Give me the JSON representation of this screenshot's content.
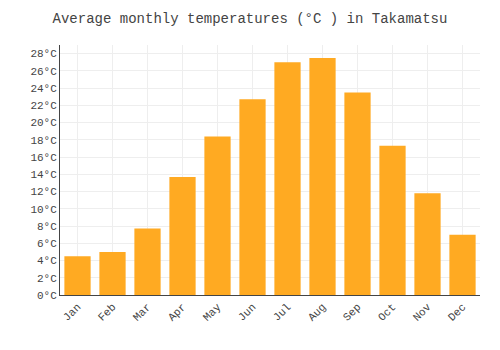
{
  "chart_data": {
    "type": "bar",
    "title": "Average monthly temperatures (°C ) in Takamatsu",
    "categories": [
      "Jan",
      "Feb",
      "Mar",
      "Apr",
      "May",
      "Jun",
      "Jul",
      "Aug",
      "Sep",
      "Oct",
      "Nov",
      "Dec"
    ],
    "values": [
      4.5,
      5.0,
      7.7,
      13.7,
      18.4,
      22.7,
      27.0,
      27.5,
      23.5,
      17.3,
      11.8,
      7.0
    ],
    "color": "#FFAA22",
    "ylim": [
      0,
      29
    ],
    "yticks": [
      {
        "value": 0,
        "label": "0°C"
      },
      {
        "value": 2,
        "label": "2°C"
      },
      {
        "value": 4,
        "label": "4°C"
      },
      {
        "value": 6,
        "label": "6°C"
      },
      {
        "value": 8,
        "label": "8°C"
      },
      {
        "value": 10,
        "label": "10°C"
      },
      {
        "value": 12,
        "label": "12°C"
      },
      {
        "value": 14,
        "label": "14°C"
      },
      {
        "value": 16,
        "label": "16°C"
      },
      {
        "value": 18,
        "label": "18°C"
      },
      {
        "value": 20,
        "label": "20°C"
      },
      {
        "value": 22,
        "label": "22°C"
      },
      {
        "value": 24,
        "label": "24°C"
      },
      {
        "value": 26,
        "label": "26°C"
      },
      {
        "value": 28,
        "label": "28°C"
      }
    ],
    "grid": true
  }
}
